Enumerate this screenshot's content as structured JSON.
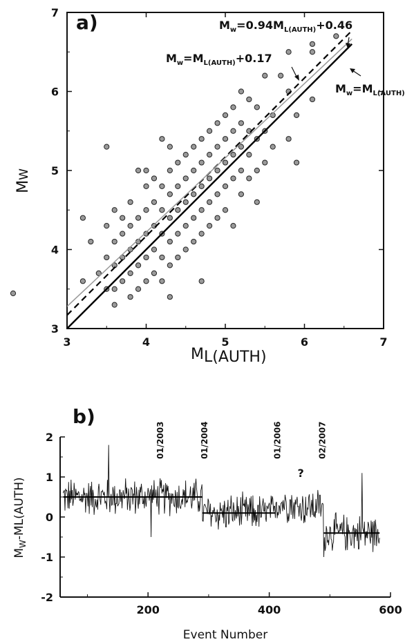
{
  "chart_data": [
    {
      "type": "scatter",
      "panel_label": "a)",
      "xlabel_main": "M",
      "xlabel_sub": "L(AUTH)",
      "ylabel_main": "M",
      "ylabel_sub": "W",
      "xlim": [
        3,
        7
      ],
      "ylim": [
        3,
        7
      ],
      "xticks": [
        "3",
        "4",
        "5",
        "6",
        "7"
      ],
      "yticks": [
        "3",
        "4",
        "5",
        "6",
        "7"
      ],
      "lines": [
        {
          "style": "solid-thick",
          "slope": 1.0,
          "intercept": 0.0,
          "label_parts": [
            "M",
            "w",
            "=M",
            "L(AUTH)"
          ]
        },
        {
          "style": "dashed",
          "slope": 1.0,
          "intercept": 0.17,
          "label_parts": [
            "M",
            "w",
            "=M",
            "L(AUTH)",
            "+0.17"
          ]
        },
        {
          "style": "thin-gray",
          "slope": 0.94,
          "intercept": 0.46,
          "label_parts": [
            "M",
            "w",
            "=0.94M",
            "L(AUTH)",
            "+0.46"
          ]
        }
      ],
      "points_approx": [
        [
          3.2,
          3.6
        ],
        [
          3.2,
          4.4
        ],
        [
          3.3,
          4.1
        ],
        [
          3.4,
          3.7
        ],
        [
          3.5,
          3.5
        ],
        [
          3.5,
          3.9
        ],
        [
          3.5,
          4.3
        ],
        [
          3.5,
          5.3
        ],
        [
          3.6,
          3.3
        ],
        [
          3.6,
          3.5
        ],
        [
          3.6,
          3.8
        ],
        [
          3.6,
          4.1
        ],
        [
          3.6,
          4.5
        ],
        [
          3.7,
          3.6
        ],
        [
          3.7,
          3.9
        ],
        [
          3.7,
          4.2
        ],
        [
          3.7,
          4.4
        ],
        [
          3.8,
          3.4
        ],
        [
          3.8,
          3.7
        ],
        [
          3.8,
          4.0
        ],
        [
          3.8,
          4.3
        ],
        [
          3.8,
          4.6
        ],
        [
          3.9,
          3.5
        ],
        [
          3.9,
          3.8
        ],
        [
          3.9,
          4.1
        ],
        [
          3.9,
          4.4
        ],
        [
          3.9,
          5.0
        ],
        [
          4.0,
          3.6
        ],
        [
          4.0,
          3.9
        ],
        [
          4.0,
          4.2
        ],
        [
          4.0,
          4.5
        ],
        [
          4.0,
          4.8
        ],
        [
          4.0,
          5.0
        ],
        [
          4.1,
          3.7
        ],
        [
          4.1,
          4.0
        ],
        [
          4.1,
          4.3
        ],
        [
          4.1,
          4.6
        ],
        [
          4.1,
          4.9
        ],
        [
          4.2,
          3.6
        ],
        [
          4.2,
          3.9
        ],
        [
          4.2,
          4.2
        ],
        [
          4.2,
          4.5
        ],
        [
          4.2,
          4.8
        ],
        [
          4.2,
          5.4
        ],
        [
          4.3,
          3.4
        ],
        [
          4.3,
          3.8
        ],
        [
          4.3,
          4.1
        ],
        [
          4.3,
          4.4
        ],
        [
          4.3,
          4.7
        ],
        [
          4.3,
          5.0
        ],
        [
          4.3,
          5.3
        ],
        [
          4.4,
          3.9
        ],
        [
          4.4,
          4.2
        ],
        [
          4.4,
          4.5
        ],
        [
          4.4,
          4.8
        ],
        [
          4.4,
          5.1
        ],
        [
          4.5,
          4.0
        ],
        [
          4.5,
          4.3
        ],
        [
          4.5,
          4.6
        ],
        [
          4.5,
          4.9
        ],
        [
          4.5,
          5.2
        ],
        [
          4.6,
          4.1
        ],
        [
          4.6,
          4.4
        ],
        [
          4.6,
          4.7
        ],
        [
          4.6,
          5.0
        ],
        [
          4.6,
          5.3
        ],
        [
          4.7,
          3.6
        ],
        [
          4.7,
          4.2
        ],
        [
          4.7,
          4.5
        ],
        [
          4.7,
          4.8
        ],
        [
          4.7,
          5.1
        ],
        [
          4.7,
          5.4
        ],
        [
          4.8,
          4.3
        ],
        [
          4.8,
          4.6
        ],
        [
          4.8,
          4.9
        ],
        [
          4.8,
          5.2
        ],
        [
          4.8,
          5.5
        ],
        [
          4.9,
          4.4
        ],
        [
          4.9,
          4.7
        ],
        [
          4.9,
          5.0
        ],
        [
          4.9,
          5.3
        ],
        [
          4.9,
          5.6
        ],
        [
          5.0,
          4.5
        ],
        [
          5.0,
          4.8
        ],
        [
          5.0,
          5.1
        ],
        [
          5.0,
          5.4
        ],
        [
          5.0,
          5.7
        ],
        [
          5.1,
          4.3
        ],
        [
          5.1,
          4.9
        ],
        [
          5.1,
          5.2
        ],
        [
          5.1,
          5.5
        ],
        [
          5.1,
          5.8
        ],
        [
          5.2,
          4.7
        ],
        [
          5.2,
          5.0
        ],
        [
          5.2,
          5.3
        ],
        [
          5.2,
          5.6
        ],
        [
          5.2,
          6.0
        ],
        [
          5.3,
          4.9
        ],
        [
          5.3,
          5.2
        ],
        [
          5.3,
          5.5
        ],
        [
          5.3,
          5.9
        ],
        [
          5.4,
          4.6
        ],
        [
          5.4,
          5.0
        ],
        [
          5.4,
          5.4
        ],
        [
          5.4,
          5.8
        ],
        [
          5.5,
          5.1
        ],
        [
          5.5,
          5.5
        ],
        [
          5.5,
          6.2
        ],
        [
          5.6,
          5.3
        ],
        [
          5.6,
          5.7
        ],
        [
          5.7,
          6.2
        ],
        [
          5.8,
          5.4
        ],
        [
          5.8,
          6.0
        ],
        [
          5.8,
          6.5
        ],
        [
          5.9,
          5.1
        ],
        [
          5.9,
          5.7
        ],
        [
          6.1,
          5.9
        ],
        [
          6.1,
          6.5
        ],
        [
          6.1,
          6.6
        ],
        [
          6.4,
          6.7
        ]
      ]
    },
    {
      "type": "line",
      "panel_label": "b)",
      "xlabel": "Event Number",
      "ylabel_parts": [
        "M",
        "W",
        "-M",
        "L(AUTH)"
      ],
      "xlim": [
        55,
        600
      ],
      "ylim": [
        -2,
        2
      ],
      "xticks": [
        "200",
        "400",
        "600"
      ],
      "yticks": [
        "2",
        "1",
        "0",
        "-1",
        "-2"
      ],
      "step_means": [
        {
          "x0": 60,
          "x1": 290,
          "y": 0.5
        },
        {
          "x0": 290,
          "x1": 410,
          "y": 0.1
        },
        {
          "x0": 490,
          "x1": 582,
          "y": -0.4
        }
      ],
      "annotations": [
        {
          "x": 225,
          "text": "01/2003"
        },
        {
          "x": 298,
          "text": "01/2004"
        },
        {
          "x": 418,
          "text": "01/2006"
        },
        {
          "x": 452,
          "text": "?"
        },
        {
          "x": 492,
          "text": "02/2007"
        }
      ],
      "noise_amplitude_approx": 0.35
    }
  ]
}
